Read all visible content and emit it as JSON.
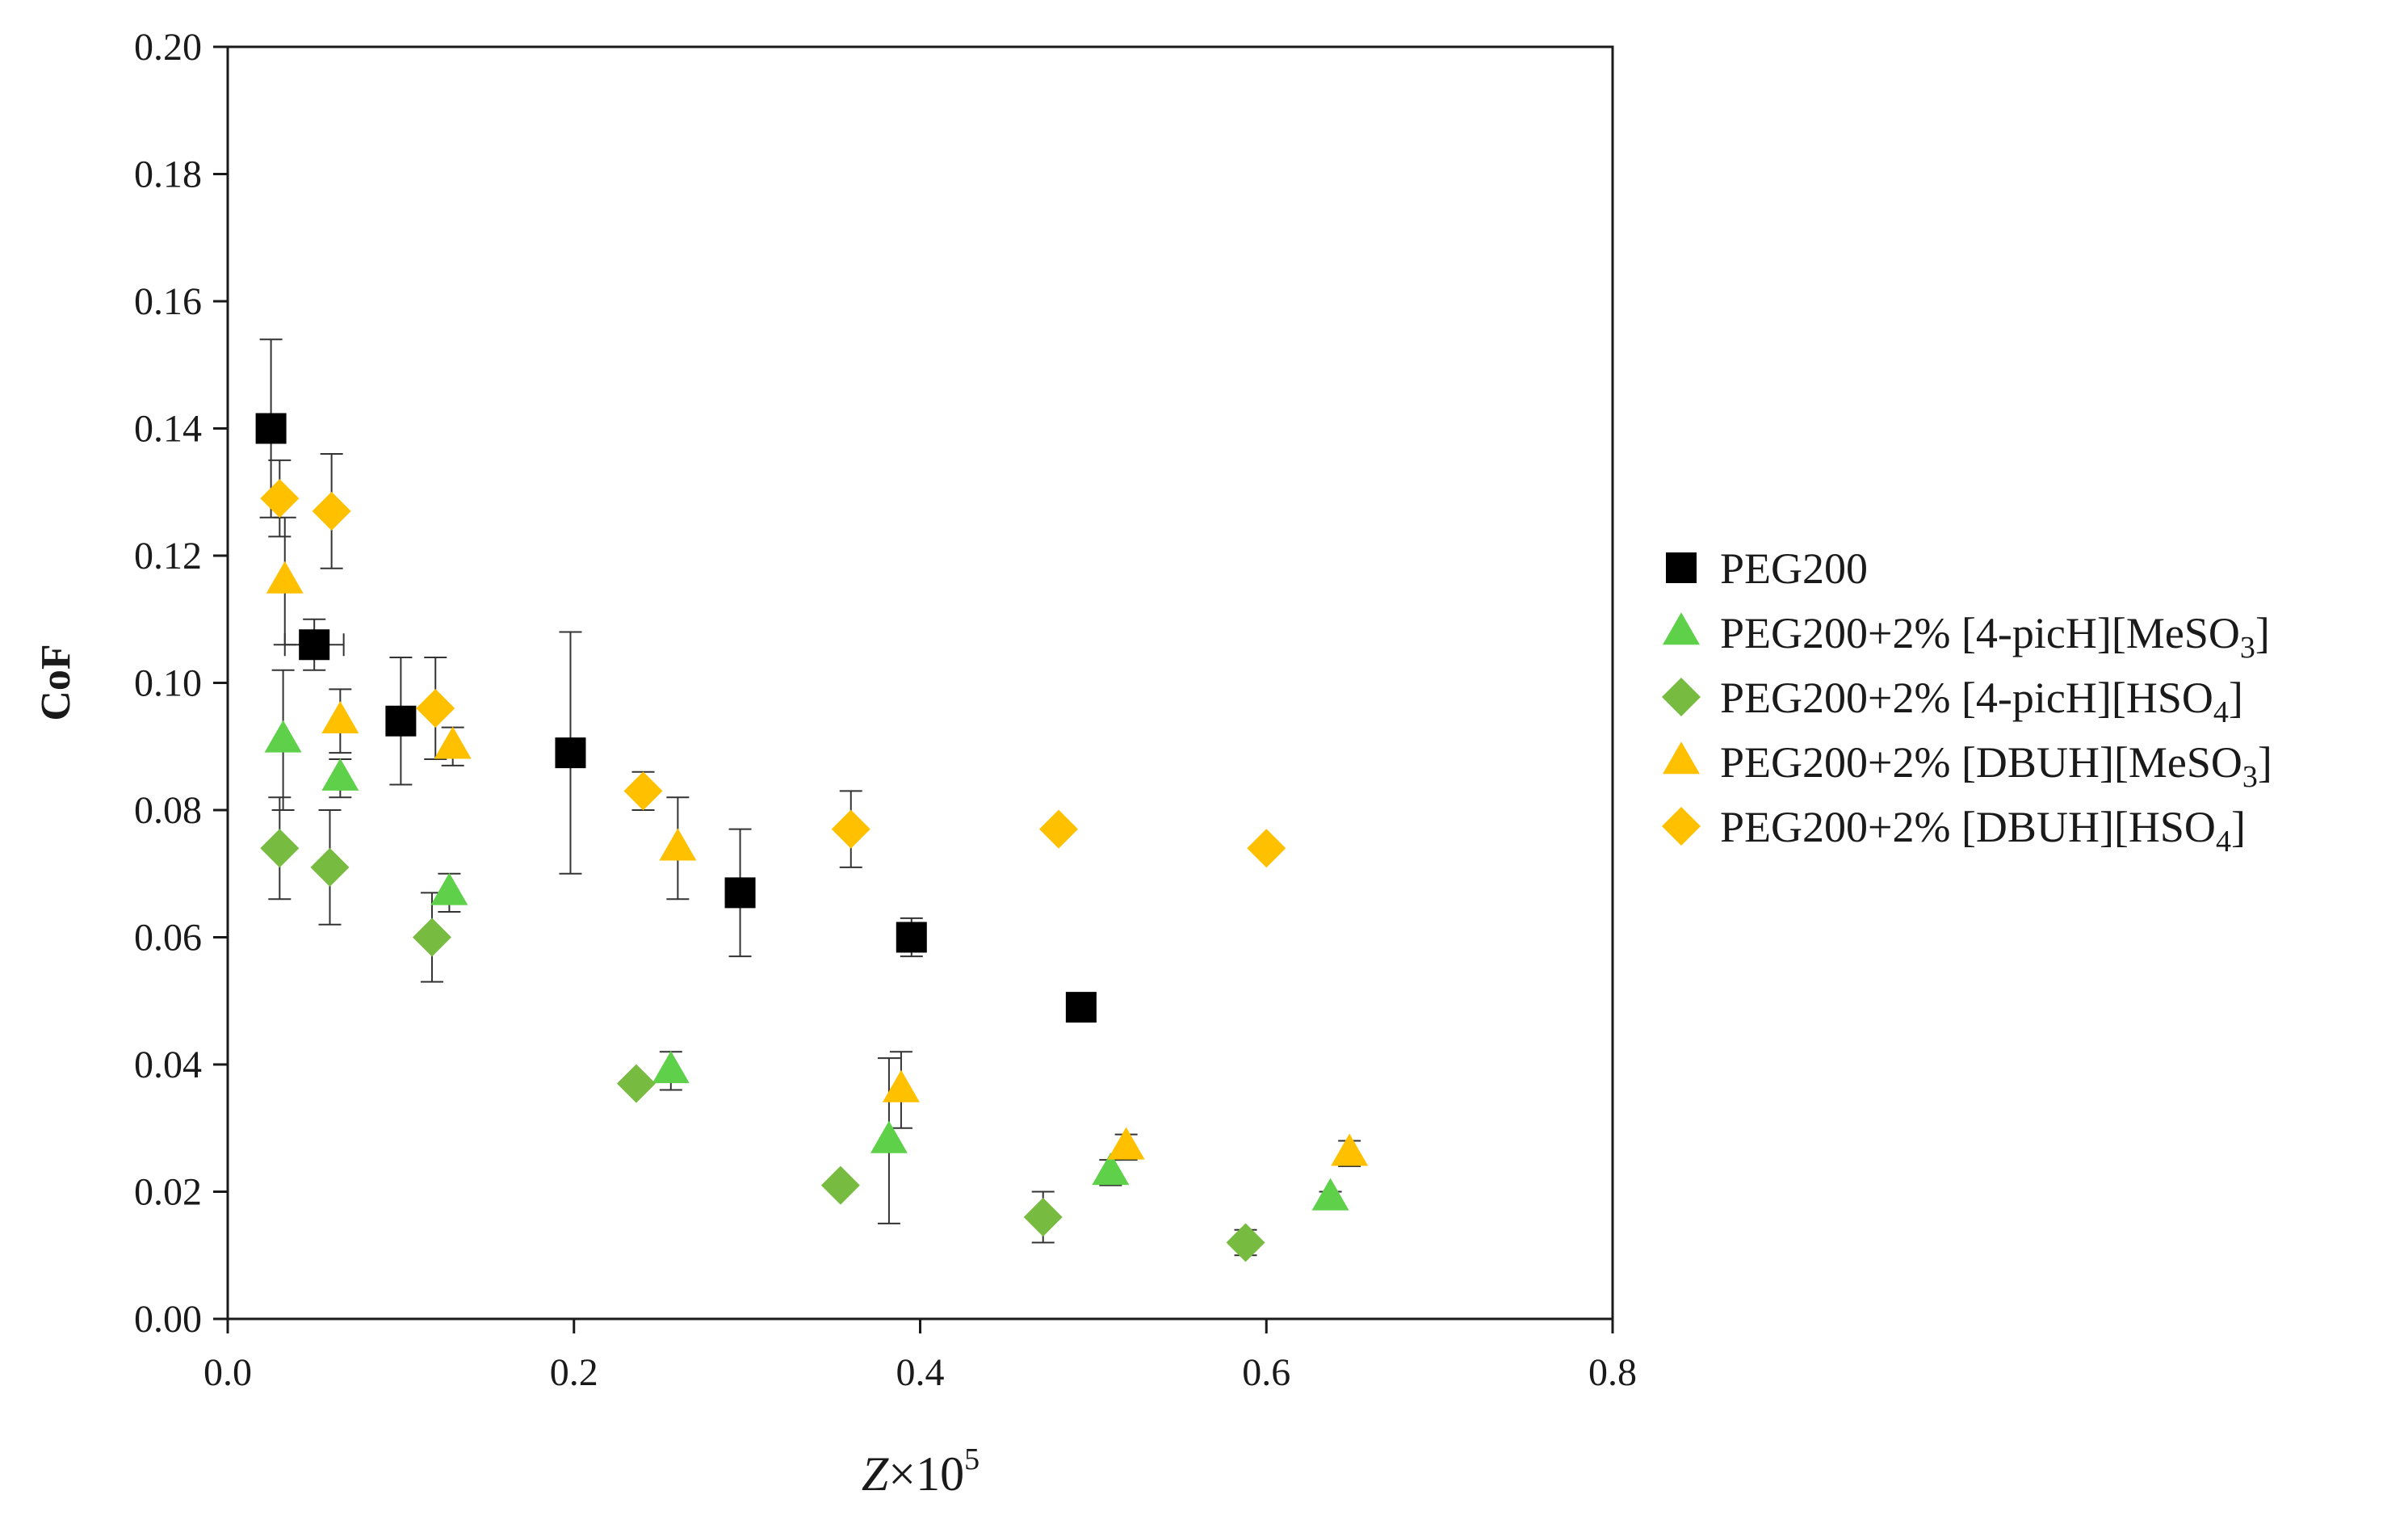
{
  "chart_data": {
    "type": "scatter",
    "title": "",
    "xlabel": {
      "var": "Z",
      "times": "×10",
      "exp": "5"
    },
    "ylabel": "CoF",
    "xlim": [
      0,
      0.8
    ],
    "ylim": [
      0,
      0.2
    ],
    "x_ticks": [
      "0.0",
      "0.2",
      "0.4",
      "0.6",
      "0.8"
    ],
    "y_ticks": [
      "0.00",
      "0.02",
      "0.04",
      "0.06",
      "0.08",
      "0.10",
      "0.12",
      "0.14",
      "0.16",
      "0.18",
      "0.20"
    ],
    "grid": false,
    "legend_position": "right",
    "series": [
      {
        "name": "PEG200",
        "label": {
          "main": "PEG200",
          "sub": "",
          "end": ""
        },
        "marker": "square",
        "color": "#000000",
        "points": [
          {
            "x": 0.025,
            "y": 0.14,
            "yerr": 0.014
          },
          {
            "x": 0.05,
            "y": 0.106,
            "yerr": 0.004,
            "xerr": 0.017
          },
          {
            "x": 0.1,
            "y": 0.094,
            "yerr": 0.01
          },
          {
            "x": 0.198,
            "y": 0.089,
            "yerr": 0.019
          },
          {
            "x": 0.296,
            "y": 0.067,
            "yerr": 0.01
          },
          {
            "x": 0.395,
            "y": 0.06,
            "yerr": 0.003
          },
          {
            "x": 0.493,
            "y": 0.049,
            "yerr": 0.0
          }
        ]
      },
      {
        "name": "PEG200+2% [4-picH][MeSO3]",
        "label": {
          "main": "PEG200+2% [4-picH][MeSO",
          "sub": "3",
          "end": "]"
        },
        "marker": "triangle",
        "color": "#5fd04a",
        "points": [
          {
            "x": 0.032,
            "y": 0.091,
            "yerr": 0.011
          },
          {
            "x": 0.065,
            "y": 0.085,
            "yerr": 0.003
          },
          {
            "x": 0.128,
            "y": 0.067,
            "yerr": 0.003
          },
          {
            "x": 0.256,
            "y": 0.039,
            "yerr": 0.003
          },
          {
            "x": 0.382,
            "y": 0.028,
            "yerr": 0.013
          },
          {
            "x": 0.51,
            "y": 0.023,
            "yerr": 0.002
          },
          {
            "x": 0.637,
            "y": 0.019,
            "yerr": 0.001
          }
        ]
      },
      {
        "name": "PEG200+2% [4-picH][HSO4]",
        "label": {
          "main": "PEG200+2% [4-picH][HSO",
          "sub": "4",
          "end": "]"
        },
        "marker": "diamond",
        "color": "#77bb41",
        "points": [
          {
            "x": 0.03,
            "y": 0.074,
            "yerr": 0.008
          },
          {
            "x": 0.059,
            "y": 0.071,
            "yerr": 0.009
          },
          {
            "x": 0.118,
            "y": 0.06,
            "yerr": 0.007
          },
          {
            "x": 0.236,
            "y": 0.037,
            "yerr": 0.001
          },
          {
            "x": 0.354,
            "y": 0.021,
            "yerr": 0.001
          },
          {
            "x": 0.471,
            "y": 0.016,
            "yerr": 0.004
          },
          {
            "x": 0.588,
            "y": 0.012,
            "yerr": 0.002
          }
        ]
      },
      {
        "name": "PEG200+2% [DBUH][MeSO3]",
        "label": {
          "main": "PEG200+2% [DBUH][MeSO",
          "sub": "3",
          "end": "]"
        },
        "marker": "triangle",
        "color": "#ffc000",
        "points": [
          {
            "x": 0.033,
            "y": 0.116,
            "yerr": 0.01
          },
          {
            "x": 0.065,
            "y": 0.094,
            "yerr": 0.005
          },
          {
            "x": 0.13,
            "y": 0.09,
            "yerr": 0.003
          },
          {
            "x": 0.26,
            "y": 0.074,
            "yerr": 0.008
          },
          {
            "x": 0.389,
            "y": 0.036,
            "yerr": 0.006
          },
          {
            "x": 0.519,
            "y": 0.027,
            "yerr": 0.002
          },
          {
            "x": 0.648,
            "y": 0.026,
            "yerr": 0.002
          }
        ]
      },
      {
        "name": "PEG200+2% [DBUH][HSO4]",
        "label": {
          "main": "PEG200+2% [DBUH][HSO",
          "sub": "4",
          "end": "]"
        },
        "marker": "diamond",
        "color": "#ffc000",
        "points": [
          {
            "x": 0.03,
            "y": 0.129,
            "yerr": 0.006
          },
          {
            "x": 0.06,
            "y": 0.127,
            "yerr": 0.009
          },
          {
            "x": 0.12,
            "y": 0.096,
            "yerr": 0.008
          },
          {
            "x": 0.24,
            "y": 0.083,
            "yerr": 0.003
          },
          {
            "x": 0.36,
            "y": 0.077,
            "yerr": 0.006
          },
          {
            "x": 0.48,
            "y": 0.077,
            "yerr": 0.001
          },
          {
            "x": 0.6,
            "y": 0.074,
            "yerr": 0.0
          }
        ]
      }
    ]
  }
}
